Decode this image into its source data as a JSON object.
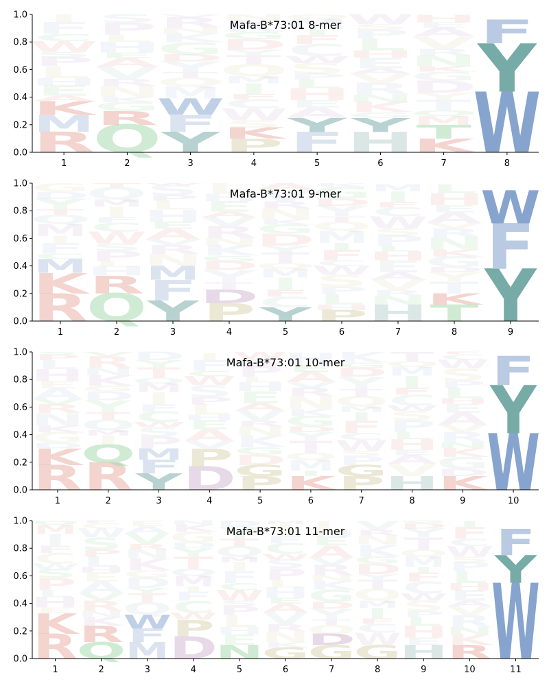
{
  "chart_data": [
    {
      "type": "sequence-logo",
      "title": "Mafa-B*73:01 8-mer",
      "xlabel": "",
      "ylabel": "",
      "ylim": [
        0,
        1
      ],
      "yticks": [
        "0.0",
        "0.2",
        "0.4",
        "0.6",
        "0.8",
        "1.0"
      ],
      "positions": [
        "1",
        "2",
        "3",
        "4",
        "5",
        "6",
        "7",
        "8"
      ],
      "anchors": [
        {
          "position": 1,
          "letters": [
            {
              "aa": "R",
              "height": 0.15
            },
            {
              "aa": "M",
              "height": 0.12
            },
            {
              "aa": "K",
              "height": 0.1
            }
          ]
        },
        {
          "position": 2,
          "letters": [
            {
              "aa": "Q",
              "height": 0.2
            },
            {
              "aa": "R",
              "height": 0.1
            }
          ]
        },
        {
          "position": 3,
          "letters": [
            {
              "aa": "Y",
              "height": 0.15
            },
            {
              "aa": "F",
              "height": 0.12
            },
            {
              "aa": "W",
              "height": 0.12
            }
          ]
        },
        {
          "position": 4,
          "letters": [
            {
              "aa": "P",
              "height": 0.1
            },
            {
              "aa": "K",
              "height": 0.08
            }
          ]
        },
        {
          "position": 5,
          "letters": [
            {
              "aa": "F",
              "height": 0.15
            },
            {
              "aa": "Y",
              "height": 0.1
            }
          ]
        },
        {
          "position": 6,
          "letters": [
            {
              "aa": "H",
              "height": 0.15
            },
            {
              "aa": "Y",
              "height": 0.1
            }
          ]
        },
        {
          "position": 7,
          "letters": [
            {
              "aa": "K",
              "height": 0.1
            },
            {
              "aa": "T",
              "height": 0.1
            }
          ]
        },
        {
          "position": 8,
          "letters": [
            {
              "aa": "W",
              "height": 0.44
            },
            {
              "aa": "Y",
              "height": 0.35
            },
            {
              "aa": "F",
              "height": 0.17
            }
          ]
        }
      ]
    },
    {
      "type": "sequence-logo",
      "title": "Mafa-B*73:01 9-mer",
      "xlabel": "",
      "ylabel": "",
      "ylim": [
        0,
        1
      ],
      "yticks": [
        "0.0",
        "0.2",
        "0.4",
        "0.6",
        "0.8",
        "1.0"
      ],
      "positions": [
        "1",
        "2",
        "3",
        "4",
        "5",
        "6",
        "7",
        "8",
        "9"
      ],
      "anchors": [
        {
          "position": 1,
          "letters": [
            {
              "aa": "R",
              "height": 0.2
            },
            {
              "aa": "K",
              "height": 0.15
            },
            {
              "aa": "M",
              "height": 0.1
            }
          ]
        },
        {
          "position": 2,
          "letters": [
            {
              "aa": "Q",
              "height": 0.2
            },
            {
              "aa": "R",
              "height": 0.13
            }
          ]
        },
        {
          "position": 3,
          "letters": [
            {
              "aa": "Y",
              "height": 0.15
            },
            {
              "aa": "F",
              "height": 0.15
            },
            {
              "aa": "M",
              "height": 0.1
            }
          ]
        },
        {
          "position": 4,
          "letters": [
            {
              "aa": "P",
              "height": 0.13
            },
            {
              "aa": "D",
              "height": 0.1
            }
          ]
        },
        {
          "position": 5,
          "letters": [
            {
              "aa": "Y",
              "height": 0.1
            }
          ]
        },
        {
          "position": 6,
          "letters": [
            {
              "aa": "P",
              "height": 0.08
            }
          ]
        },
        {
          "position": 7,
          "letters": [
            {
              "aa": "H",
              "height": 0.12
            }
          ]
        },
        {
          "position": 8,
          "letters": [
            {
              "aa": "T",
              "height": 0.12
            },
            {
              "aa": "K",
              "height": 0.08
            }
          ]
        },
        {
          "position": 9,
          "letters": [
            {
              "aa": "Y",
              "height": 0.38
            },
            {
              "aa": "F",
              "height": 0.33
            },
            {
              "aa": "W",
              "height": 0.24
            }
          ]
        }
      ]
    },
    {
      "type": "sequence-logo",
      "title": "Mafa-B*73:01 10-mer",
      "xlabel": "",
      "ylabel": "",
      "ylim": [
        0,
        1
      ],
      "yticks": [
        "0.0",
        "0.2",
        "0.4",
        "0.6",
        "0.8",
        "1.0"
      ],
      "positions": [
        "1",
        "2",
        "3",
        "4",
        "5",
        "6",
        "7",
        "8",
        "9",
        "10"
      ],
      "anchors": [
        {
          "position": 1,
          "letters": [
            {
              "aa": "R",
              "height": 0.18
            },
            {
              "aa": "K",
              "height": 0.12
            }
          ]
        },
        {
          "position": 2,
          "letters": [
            {
              "aa": "R",
              "height": 0.2
            },
            {
              "aa": "Q",
              "height": 0.13
            }
          ]
        },
        {
          "position": 3,
          "letters": [
            {
              "aa": "Y",
              "height": 0.12
            },
            {
              "aa": "F",
              "height": 0.1
            },
            {
              "aa": "M",
              "height": 0.08
            }
          ]
        },
        {
          "position": 4,
          "letters": [
            {
              "aa": "D",
              "height": 0.17
            },
            {
              "aa": "P",
              "height": 0.13
            }
          ]
        },
        {
          "position": 5,
          "letters": [
            {
              "aa": "P",
              "height": 0.1
            },
            {
              "aa": "G",
              "height": 0.08
            }
          ]
        },
        {
          "position": 6,
          "letters": [
            {
              "aa": "K",
              "height": 0.1
            }
          ]
        },
        {
          "position": 7,
          "letters": [
            {
              "aa": "P",
              "height": 0.1
            },
            {
              "aa": "G",
              "height": 0.08
            }
          ]
        },
        {
          "position": 8,
          "letters": [
            {
              "aa": "H",
              "height": 0.1
            }
          ]
        },
        {
          "position": 9,
          "letters": [
            {
              "aa": "K",
              "height": 0.1
            }
          ]
        },
        {
          "position": 10,
          "letters": [
            {
              "aa": "W",
              "height": 0.41
            },
            {
              "aa": "Y",
              "height": 0.35
            },
            {
              "aa": "F",
              "height": 0.21
            }
          ]
        }
      ]
    },
    {
      "type": "sequence-logo",
      "title": "Mafa-B*73:01 11-mer",
      "xlabel": "",
      "ylabel": "",
      "ylim": [
        0,
        1
      ],
      "yticks": [
        "0.0",
        "0.2",
        "0.4",
        "0.6",
        "0.8",
        "1.0"
      ],
      "positions": [
        "1",
        "2",
        "3",
        "4",
        "5",
        "6",
        "7",
        "8",
        "9",
        "10",
        "11"
      ],
      "anchors": [
        {
          "position": 1,
          "letters": [
            {
              "aa": "R",
              "height": 0.18
            },
            {
              "aa": "K",
              "height": 0.15
            }
          ]
        },
        {
          "position": 2,
          "letters": [
            {
              "aa": "Q",
              "height": 0.12
            },
            {
              "aa": "R",
              "height": 0.12
            }
          ]
        },
        {
          "position": 3,
          "letters": [
            {
              "aa": "M",
              "height": 0.12
            },
            {
              "aa": "F",
              "height": 0.1
            },
            {
              "aa": "W",
              "height": 0.1
            }
          ]
        },
        {
          "position": 4,
          "letters": [
            {
              "aa": "D",
              "height": 0.16
            },
            {
              "aa": "P",
              "height": 0.12
            }
          ]
        },
        {
          "position": 5,
          "letters": [
            {
              "aa": "N",
              "height": 0.1
            }
          ]
        },
        {
          "position": 6,
          "letters": [
            {
              "aa": "G",
              "height": 0.08
            }
          ]
        },
        {
          "position": 7,
          "letters": [
            {
              "aa": "G",
              "height": 0.1
            },
            {
              "aa": "D",
              "height": 0.08
            }
          ]
        },
        {
          "position": 8,
          "letters": [
            {
              "aa": "G",
              "height": 0.1
            }
          ]
        },
        {
          "position": 9,
          "letters": [
            {
              "aa": "H",
              "height": 0.1
            }
          ]
        },
        {
          "position": 10,
          "letters": [
            {
              "aa": "R",
              "height": 0.1
            }
          ]
        },
        {
          "position": 11,
          "letters": [
            {
              "aa": "W",
              "height": 0.55
            },
            {
              "aa": "Y",
              "height": 0.2
            },
            {
              "aa": "F",
              "height": 0.19
            }
          ]
        }
      ]
    }
  ],
  "colors": {
    "R": "#e8a9a0",
    "K": "#e8a9a0",
    "H": "#b7cfcb",
    "Q": "#9fd8a8",
    "N": "#9fd8a8",
    "T": "#9fd8a8",
    "S": "#9fd8a8",
    "G": "#d8d2ae",
    "P": "#d8d2ae",
    "D": "#cfb3d2",
    "E": "#cfb3d2",
    "F": "#b5c7e0",
    "W": "#7f9fcb",
    "Y": "#6fa6a2",
    "M": "#b5c7e0",
    "A": "#c0c8d8",
    "V": "#c0c8d8",
    "L": "#c0c8d8",
    "I": "#c0c8d8",
    "C": "#c0c8d8"
  }
}
